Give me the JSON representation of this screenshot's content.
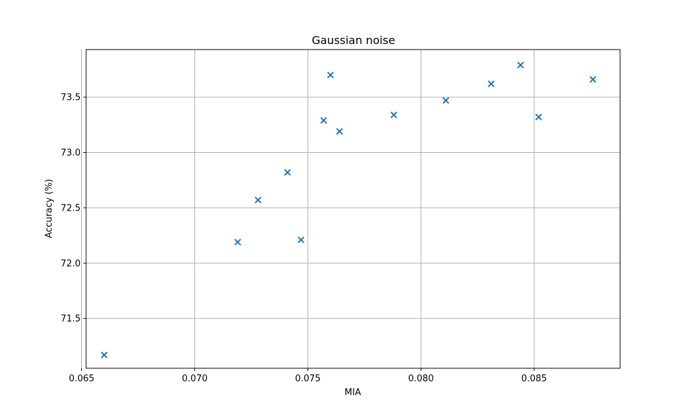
{
  "chart_data": {
    "type": "scatter",
    "title": "Gaussian noise",
    "xlabel": "MIA",
    "ylabel": "Accuracy (%)",
    "xlim": [
      0.0652,
      0.0888
    ],
    "ylim": [
      71.05,
      73.93
    ],
    "xticks": [
      0.065,
      0.07,
      0.075,
      0.08,
      0.085
    ],
    "xtick_labels": [
      "0.065",
      "0.070",
      "0.075",
      "0.080",
      "0.085"
    ],
    "yticks": [
      71.5,
      72.0,
      72.5,
      73.0,
      73.5
    ],
    "ytick_labels": [
      "71.5",
      "72.0",
      "72.5",
      "73.0",
      "73.5"
    ],
    "grid": true,
    "marker": "x",
    "color": "#1f77b4",
    "points": [
      {
        "x": 0.066,
        "y": 71.17
      },
      {
        "x": 0.0719,
        "y": 72.19
      },
      {
        "x": 0.0728,
        "y": 72.57
      },
      {
        "x": 0.0741,
        "y": 72.82
      },
      {
        "x": 0.0747,
        "y": 72.21
      },
      {
        "x": 0.0757,
        "y": 73.29
      },
      {
        "x": 0.076,
        "y": 73.7
      },
      {
        "x": 0.0764,
        "y": 73.19
      },
      {
        "x": 0.0788,
        "y": 73.34
      },
      {
        "x": 0.0811,
        "y": 73.47
      },
      {
        "x": 0.0831,
        "y": 73.62
      },
      {
        "x": 0.0844,
        "y": 73.79
      },
      {
        "x": 0.0852,
        "y": 73.32
      },
      {
        "x": 0.0876,
        "y": 73.66
      }
    ]
  }
}
